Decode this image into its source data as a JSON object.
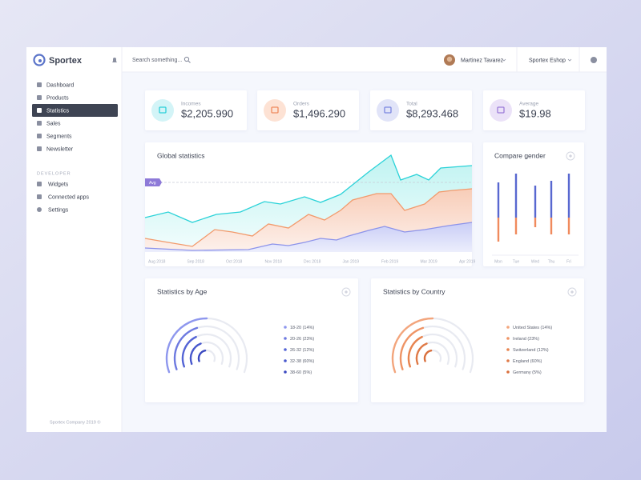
{
  "sidebar": {
    "brand": "Sportex",
    "menu": [
      "Dashboard",
      "Products",
      "Statistics",
      "Sales",
      "Segments",
      "Newsletter"
    ],
    "section": "DEVELOPER",
    "dev_menu": [
      "Widgets",
      "Connected apps",
      "Settings"
    ],
    "footer": "Sportex Company 2019 ©"
  },
  "topbar": {
    "search_placeholder": "Search something...",
    "user": "Martinez Tavarez",
    "shop": "Sportex Eshop"
  },
  "stats": [
    {
      "label": "Incomes",
      "value": "$2,205.990"
    },
    {
      "label": "Orders",
      "value": "$1,496.290"
    },
    {
      "label": "Total",
      "value": "$8,293.468"
    },
    {
      "label": "Average",
      "value": "$19.98"
    }
  ],
  "global_statistics": {
    "title": "Global statistics",
    "avg_label": "Avg",
    "months": [
      "Aug 2018",
      "Sep 2018",
      "Oct 2018",
      "Nov 2018",
      "Dec 2018",
      "Jan 2019",
      "Feb 2019",
      "Mar 2019",
      "Apr 2019"
    ]
  },
  "compare_gender": {
    "title": "Compare gender",
    "days": [
      "Mon",
      "Tue",
      "Wed",
      "Thu",
      "Fri"
    ]
  },
  "statistics_by_age": {
    "title": "Statistics by Age",
    "legend": [
      "18-20 (14%)",
      "20-26 (23%)",
      "26-32 (12%)",
      "32-38 (60%)",
      "38-60 (5%)"
    ]
  },
  "statistics_by_country": {
    "title": "Statistics by Country",
    "legend": [
      "United States (14%)",
      "Ireland (23%)",
      "Switzerland (12%)",
      "England (60%)",
      "Germany (5%)"
    ]
  }
}
